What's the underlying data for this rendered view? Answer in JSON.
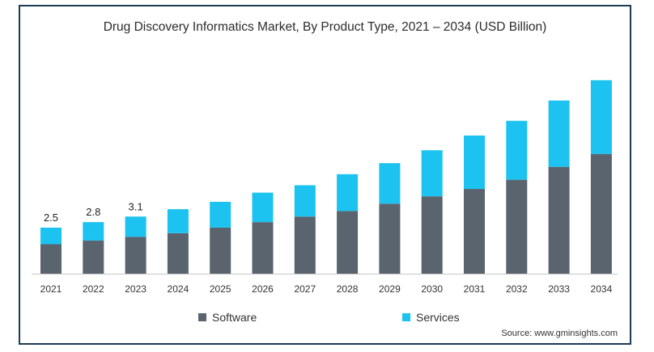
{
  "chart_data": {
    "type": "bar",
    "stacked": true,
    "title": "Drug Discovery Informatics Market, By Product Type, 2021 – 2034 (USD Billion)",
    "xlabel": "",
    "ylabel": "",
    "categories": [
      "2021",
      "2022",
      "2023",
      "2024",
      "2025",
      "2026",
      "2027",
      "2028",
      "2029",
      "2030",
      "2031",
      "2032",
      "2033",
      "2034"
    ],
    "series": [
      {
        "name": "Software",
        "color": "#5a646e",
        "values": [
          1.6,
          1.8,
          2.0,
          2.2,
          2.5,
          2.8,
          3.1,
          3.4,
          3.8,
          4.2,
          4.6,
          5.1,
          5.8,
          6.5
        ]
      },
      {
        "name": "Services",
        "color": "#1cc3f0",
        "values": [
          0.9,
          1.0,
          1.1,
          1.3,
          1.4,
          1.6,
          1.7,
          2.0,
          2.2,
          2.5,
          2.9,
          3.2,
          3.6,
          4.0
        ]
      }
    ],
    "data_labels": [
      "2.5",
      "2.8",
      "3.1",
      "",
      "",
      "",
      "",
      "",
      "",
      "",
      "",
      "",
      "",
      ""
    ],
    "ylim": [
      0,
      11
    ],
    "grid": false,
    "legend": "bottom"
  },
  "source": "Source: www.gminsights.com"
}
